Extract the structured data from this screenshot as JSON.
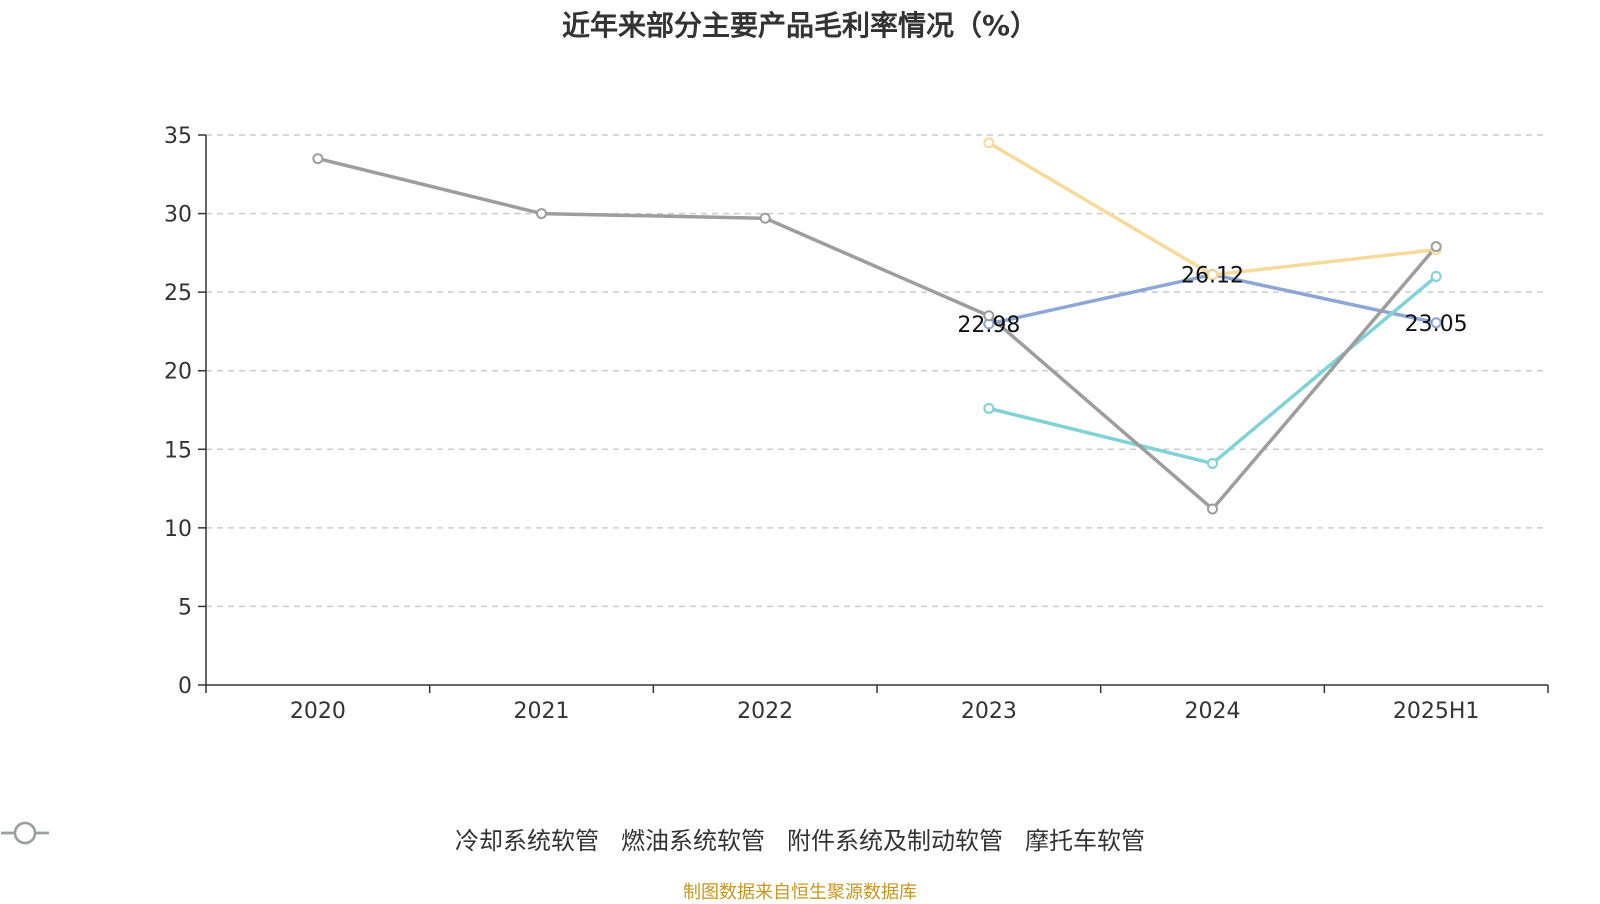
{
  "chart_data": {
    "type": "line",
    "title": "近年来部分主要产品毛利率情况（%）",
    "categories": [
      "2020",
      "2021",
      "2022",
      "2023",
      "2024",
      "2025H1"
    ],
    "ylim": [
      0,
      35
    ],
    "yticks": [
      0,
      5,
      10,
      15,
      20,
      25,
      30,
      35
    ],
    "grid": true,
    "legend_position": "bottom",
    "series": [
      {
        "name": "冷却系统软管",
        "color": "#8da6d6",
        "values": [
          null,
          null,
          null,
          22.98,
          26.12,
          23.05
        ],
        "labels": [
          null,
          null,
          null,
          "22.98",
          "26.12",
          "23.05"
        ]
      },
      {
        "name": "燃油系统软管",
        "color": "#f7d99a",
        "values": [
          null,
          null,
          null,
          34.5,
          26.1,
          27.7
        ],
        "labels": [
          null,
          null,
          null,
          null,
          null,
          null
        ]
      },
      {
        "name": "附件系统及制动软管",
        "color": "#7fd3d6",
        "values": [
          null,
          null,
          null,
          17.6,
          14.1,
          26.0
        ],
        "labels": [
          null,
          null,
          null,
          null,
          null,
          null
        ]
      },
      {
        "name": "摩托车软管",
        "color": "#9d9d9d",
        "values": [
          33.5,
          30.0,
          29.7,
          23.5,
          11.2,
          27.9
        ],
        "labels": [
          null,
          null,
          null,
          null,
          null,
          null
        ]
      }
    ]
  },
  "footer": {
    "source": "制图数据来自恒生聚源数据库"
  }
}
